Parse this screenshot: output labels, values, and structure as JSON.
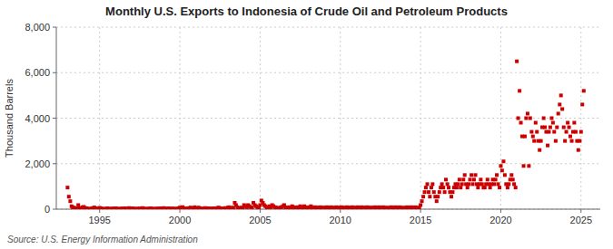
{
  "chart_data": {
    "type": "scatter",
    "title": "Monthly U.S. Exports to Indonesia of Crude Oil and Petroleum Products",
    "y_label": "Thousand Barrels",
    "source": "Source: U.S. Energy Information Administration",
    "color": "#cc0000",
    "marker": "square",
    "grid": true,
    "xlim": [
      1992.3,
      2026.2
    ],
    "xticks": [
      1995,
      2000,
      2005,
      2010,
      2015,
      2020,
      2025
    ],
    "ylim": [
      0,
      8000
    ],
    "yticks": [
      0,
      {
        "value": 2000,
        "label": "2,000"
      },
      {
        "value": 4000,
        "label": "4,000"
      },
      {
        "value": 6000,
        "label": "6,000"
      },
      {
        "value": 8000,
        "label": "8,000"
      }
    ],
    "x": [
      1993.0,
      1993.08,
      1993.17,
      1993.25,
      1993.33,
      1993.42,
      1993.5,
      1993.58,
      1993.67,
      1993.75,
      1993.83,
      1993.92,
      1994.0,
      1994.08,
      1994.17,
      1994.25,
      1994.33,
      1994.42,
      1994.5,
      1994.58,
      1994.67,
      1994.75,
      1994.83,
      1994.92,
      1995.0,
      1995.08,
      1995.17,
      1995.25,
      1995.33,
      1995.42,
      1995.5,
      1995.58,
      1995.67,
      1995.75,
      1995.83,
      1995.92,
      1996.0,
      1996.08,
      1996.17,
      1996.25,
      1996.33,
      1996.42,
      1996.5,
      1996.58,
      1996.67,
      1996.75,
      1996.83,
      1996.92,
      1997.0,
      1997.08,
      1997.17,
      1997.25,
      1997.33,
      1997.42,
      1997.5,
      1997.58,
      1997.67,
      1997.75,
      1997.83,
      1997.92,
      1998.0,
      1998.08,
      1998.17,
      1998.25,
      1998.33,
      1998.42,
      1998.5,
      1998.58,
      1998.67,
      1998.75,
      1998.83,
      1998.92,
      1999.0,
      1999.08,
      1999.17,
      1999.25,
      1999.33,
      1999.42,
      1999.5,
      1999.58,
      1999.67,
      1999.75,
      1999.83,
      1999.92,
      2000.0,
      2000.08,
      2000.17,
      2000.25,
      2000.33,
      2000.42,
      2000.5,
      2000.58,
      2000.67,
      2000.75,
      2000.83,
      2000.92,
      2001.0,
      2001.08,
      2001.17,
      2001.25,
      2001.33,
      2001.42,
      2001.5,
      2001.58,
      2001.67,
      2001.75,
      2001.83,
      2001.92,
      2002.0,
      2002.08,
      2002.17,
      2002.25,
      2002.33,
      2002.42,
      2002.5,
      2002.58,
      2002.67,
      2002.75,
      2002.83,
      2002.92,
      2003.0,
      2003.08,
      2003.17,
      2003.25,
      2003.33,
      2003.42,
      2003.5,
      2003.58,
      2003.67,
      2003.75,
      2003.83,
      2003.92,
      2004.0,
      2004.08,
      2004.17,
      2004.25,
      2004.33,
      2004.42,
      2004.5,
      2004.58,
      2004.67,
      2004.75,
      2004.83,
      2004.92,
      2005.0,
      2005.08,
      2005.17,
      2005.25,
      2005.33,
      2005.42,
      2005.5,
      2005.58,
      2005.67,
      2005.75,
      2005.83,
      2005.92,
      2006.0,
      2006.08,
      2006.17,
      2006.25,
      2006.33,
      2006.42,
      2006.5,
      2006.58,
      2006.67,
      2006.75,
      2006.83,
      2006.92,
      2007.0,
      2007.08,
      2007.17,
      2007.25,
      2007.33,
      2007.42,
      2007.5,
      2007.58,
      2007.67,
      2007.75,
      2007.83,
      2007.92,
      2008.0,
      2008.08,
      2008.17,
      2008.25,
      2008.33,
      2008.42,
      2008.5,
      2008.58,
      2008.67,
      2008.75,
      2008.83,
      2008.92,
      2009.0,
      2009.08,
      2009.17,
      2009.25,
      2009.33,
      2009.42,
      2009.5,
      2009.58,
      2009.67,
      2009.75,
      2009.83,
      2009.92,
      2010.0,
      2010.08,
      2010.17,
      2010.25,
      2010.33,
      2010.42,
      2010.5,
      2010.58,
      2010.67,
      2010.75,
      2010.83,
      2010.92,
      2011.0,
      2011.08,
      2011.17,
      2011.25,
      2011.33,
      2011.42,
      2011.5,
      2011.58,
      2011.67,
      2011.75,
      2011.83,
      2011.92,
      2012.0,
      2012.08,
      2012.17,
      2012.25,
      2012.33,
      2012.42,
      2012.5,
      2012.58,
      2012.67,
      2012.75,
      2012.83,
      2012.92,
      2013.0,
      2013.08,
      2013.17,
      2013.25,
      2013.33,
      2013.42,
      2013.5,
      2013.58,
      2013.67,
      2013.75,
      2013.83,
      2013.92,
      2014.0,
      2014.08,
      2014.17,
      2014.25,
      2014.33,
      2014.42,
      2014.5,
      2014.58,
      2014.67,
      2014.75,
      2014.83,
      2014.92,
      2015.0,
      2015.08,
      2015.17,
      2015.25,
      2015.33,
      2015.42,
      2015.5,
      2015.58,
      2015.67,
      2015.75,
      2015.83,
      2015.92,
      2016.0,
      2016.08,
      2016.17,
      2016.25,
      2016.33,
      2016.42,
      2016.5,
      2016.58,
      2016.67,
      2016.75,
      2016.83,
      2016.92,
      2017.0,
      2017.08,
      2017.17,
      2017.25,
      2017.33,
      2017.42,
      2017.5,
      2017.58,
      2017.67,
      2017.75,
      2017.83,
      2017.92,
      2018.0,
      2018.08,
      2018.17,
      2018.25,
      2018.33,
      2018.42,
      2018.5,
      2018.58,
      2018.67,
      2018.75,
      2018.83,
      2018.92,
      2019.0,
      2019.08,
      2019.17,
      2019.25,
      2019.33,
      2019.42,
      2019.5,
      2019.58,
      2019.67,
      2019.75,
      2019.83,
      2019.92,
      2020.0,
      2020.08,
      2020.17,
      2020.25,
      2020.33,
      2020.42,
      2020.5,
      2020.58,
      2020.67,
      2020.75,
      2020.83,
      2020.92,
      2021.0,
      2021.08,
      2021.17,
      2021.25,
      2021.33,
      2021.42,
      2021.5,
      2021.58,
      2021.67,
      2021.75,
      2021.83,
      2021.92,
      2022.0,
      2022.08,
      2022.17,
      2022.25,
      2022.33,
      2022.42,
      2022.5,
      2022.58,
      2022.67,
      2022.75,
      2022.83,
      2022.92,
      2023.0,
      2023.08,
      2023.17,
      2023.25,
      2023.33,
      2023.42,
      2023.5,
      2023.58,
      2023.67,
      2023.75,
      2023.83,
      2023.92,
      2024.0,
      2024.08,
      2024.17,
      2024.25,
      2024.33,
      2024.42,
      2024.5,
      2024.58,
      2024.67,
      2024.75,
      2024.83,
      2024.92,
      2025.0,
      2025.08,
      2025.17
    ],
    "values": [
      950,
      550,
      350,
      130,
      80,
      60,
      40,
      30,
      180,
      40,
      20,
      80,
      100,
      60,
      40,
      25,
      15,
      8,
      30,
      50,
      75,
      40,
      25,
      15,
      60,
      40,
      20,
      15,
      8,
      25,
      40,
      15,
      8,
      25,
      30,
      15,
      40,
      25,
      15,
      8,
      25,
      30,
      15,
      40,
      25,
      15,
      50,
      30,
      25,
      40,
      15,
      8,
      25,
      15,
      30,
      25,
      50,
      30,
      15,
      8,
      25,
      15,
      40,
      25,
      15,
      8,
      25,
      15,
      30,
      25,
      40,
      15,
      50,
      30,
      15,
      25,
      40,
      15,
      25,
      30,
      15,
      8,
      25,
      40,
      70,
      50,
      90,
      40,
      25,
      15,
      30,
      50,
      70,
      40,
      25,
      85,
      50,
      30,
      70,
      40,
      25,
      15,
      30,
      50,
      25,
      40,
      30,
      15,
      25,
      40,
      30,
      15,
      50,
      70,
      40,
      25,
      30,
      15,
      50,
      30,
      70,
      85,
      50,
      30,
      70,
      280,
      180,
      85,
      50,
      30,
      70,
      50,
      180,
      130,
      85,
      180,
      130,
      85,
      70,
      280,
      180,
      130,
      85,
      70,
      180,
      380,
      280,
      180,
      130,
      85,
      70,
      130,
      85,
      180,
      130,
      85,
      70,
      50,
      30,
      70,
      85,
      130,
      180,
      85,
      70,
      50,
      85,
      70,
      130,
      85,
      70,
      50,
      85,
      70,
      130,
      85,
      70,
      130,
      85,
      70,
      50,
      85,
      130,
      70,
      50,
      85,
      70,
      50,
      70,
      85,
      50,
      70,
      50,
      70,
      85,
      50,
      70,
      85,
      50,
      70,
      50,
      85,
      70,
      50,
      70,
      85,
      50,
      70,
      50,
      85,
      70,
      50,
      70,
      85,
      50,
      70,
      50,
      85,
      70,
      50,
      85,
      70,
      50,
      70,
      85,
      70,
      50,
      70,
      50,
      70,
      85,
      50,
      70,
      85,
      50,
      70,
      85,
      50,
      70,
      50,
      50,
      70,
      85,
      50,
      70,
      85,
      50,
      70,
      85,
      50,
      70,
      50,
      50,
      70,
      85,
      50,
      70,
      85,
      50,
      70,
      85,
      50,
      70,
      50,
      180,
      350,
      550,
      750,
      950,
      1100,
      750,
      550,
      950,
      1100,
      750,
      550,
      350,
      550,
      750,
      950,
      1100,
      950,
      750,
      1300,
      1100,
      950,
      750,
      550,
      750,
      950,
      1100,
      950,
      1100,
      1300,
      950,
      1100,
      1300,
      1500,
      1100,
      950,
      1100,
      1300,
      1500,
      1100,
      1300,
      1500,
      1100,
      950,
      1100,
      1300,
      1100,
      950,
      950,
      1100,
      1300,
      1100,
      950,
      1100,
      1300,
      1100,
      1300,
      1500,
      1100,
      950,
      1900,
      1700,
      2100,
      1500,
      1100,
      950,
      1100,
      1300,
      1500,
      1300,
      1100,
      950,
      6500,
      4000,
      5200,
      3800,
      3200,
      1900,
      3200,
      4000,
      4200,
      1900,
      4000,
      3400,
      3200,
      3000,
      3800,
      3400,
      3000,
      2600,
      3000,
      3600,
      4000,
      3600,
      3400,
      2800,
      3400,
      3600,
      4000,
      3800,
      3400,
      3000,
      3600,
      4200,
      4600,
      5000,
      4400,
      3600,
      3000,
      3400,
      3800,
      3600,
      3200,
      3000,
      3400,
      3800,
      3400,
      3000,
      2600,
      3000,
      3400,
      4600,
      5200
    ]
  }
}
